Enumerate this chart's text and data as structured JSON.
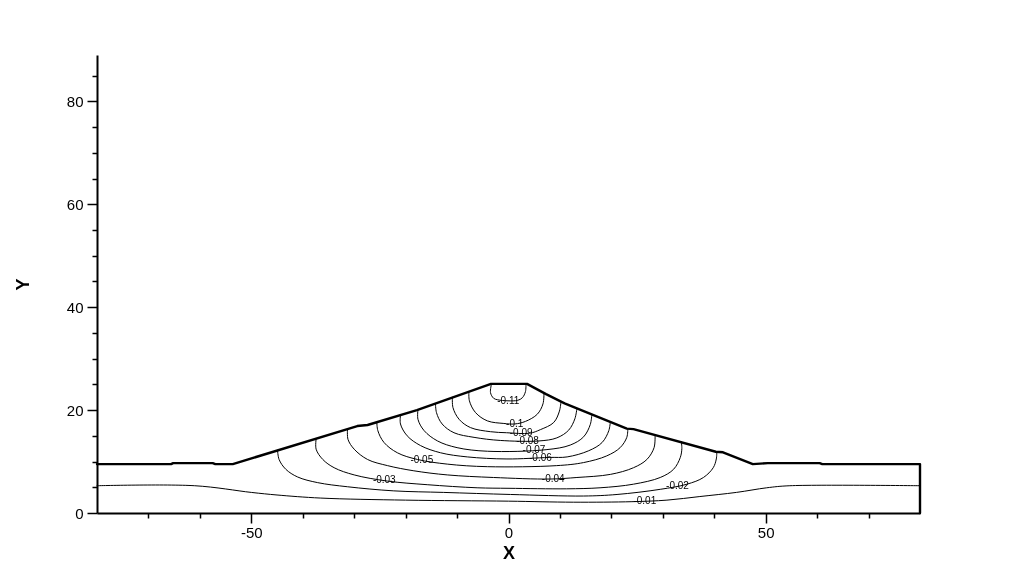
{
  "chart_data": {
    "type": "line",
    "xlabel": "X",
    "ylabel": "Y",
    "xlim": [
      -80,
      80
    ],
    "ylim": [
      0,
      89
    ],
    "xticks": [
      {
        "value": -70,
        "label": null
      },
      {
        "value": -60,
        "label": null
      },
      -50,
      {
        "value": -40,
        "label": null
      },
      {
        "value": -30,
        "label": null
      },
      {
        "value": -20,
        "label": null
      },
      {
        "value": -10,
        "label": null
      },
      0,
      {
        "value": 10,
        "label": null
      },
      {
        "value": 20,
        "label": null
      },
      {
        "value": 30,
        "label": null
      },
      {
        "value": 40,
        "label": null
      },
      50,
      {
        "value": 60,
        "label": null
      },
      {
        "value": 70,
        "label": null
      }
    ],
    "yticks": [
      0,
      {
        "value": 5,
        "label": null
      },
      {
        "value": 10,
        "label": null
      },
      {
        "value": 15,
        "label": null
      },
      20,
      {
        "value": 25,
        "label": null
      },
      {
        "value": 30,
        "label": null
      },
      {
        "value": 35,
        "label": null
      },
      40,
      {
        "value": 45,
        "label": null
      },
      {
        "value": 50,
        "label": null
      },
      {
        "value": 55,
        "label": null
      },
      60,
      {
        "value": 65,
        "label": null
      },
      {
        "value": 70,
        "label": null
      },
      {
        "value": 75,
        "label": null
      },
      80,
      {
        "value": 85,
        "label": null
      }
    ],
    "series": [
      {
        "color": "#000000",
        "x": [
          -80,
          -65.6,
          -65.2,
          -57.5,
          -57,
          -53.6,
          -29.4,
          -27.4,
          -17.8,
          -3.4,
          3.6,
          7.3,
          10.9,
          23,
          24.3,
          40.3,
          41.7,
          47.5,
          50.4,
          60.5,
          61,
          80,
          80
        ],
        "values": [
          9.5,
          9.5,
          9.7,
          9.7,
          9.5,
          9.5,
          16.9,
          17.1,
          20,
          25.1,
          25.1,
          23.1,
          21.3,
          16.4,
          16.3,
          11.9,
          11.8,
          9.5,
          9.7,
          9.7,
          9.5,
          9.5,
          0
        ]
      },
      {
        "name": "-0.11",
        "color": "#000000",
        "x": [
          -3.3,
          -3.5,
          -2.9,
          -2.1,
          -0.1,
          1.8,
          2.7,
          3.3,
          3.4
        ],
        "values": [
          25.1,
          23.4,
          22.3,
          22,
          21.8,
          21.9,
          22.4,
          23.6,
          25.1
        ]
      },
      {
        "name": "-0.1",
        "color": "#000000",
        "x": [
          -7.7,
          -7.6,
          -6.4,
          -4.1,
          -0.9,
          1.2,
          3.3,
          5.6,
          6.7,
          6.9
        ],
        "values": [
          23.6,
          21.8,
          19.5,
          17.9,
          17.4,
          17.3,
          17.8,
          19.2,
          21.2,
          23.3
        ]
      },
      {
        "name": "-0.09",
        "color": "#000000",
        "x": [
          -10.9,
          -10.8,
          -9.6,
          -7.4,
          -3.5,
          -0.4,
          4.1,
          6.2,
          8.8,
          9.9,
          10.2
        ],
        "values": [
          22.5,
          20.5,
          18.2,
          16.6,
          15.8,
          15.6,
          15.5,
          16.2,
          17.6,
          19.8,
          21.6
        ]
      },
      {
        "name": "-0.08",
        "color": "#000000",
        "x": [
          -14.2,
          -14,
          -12.9,
          -10.6,
          -6.7,
          -1.6,
          5.9,
          9.4,
          11.7,
          12.9,
          13.3
        ],
        "values": [
          21.3,
          19.5,
          17.3,
          15.6,
          14.7,
          14.1,
          14,
          14.6,
          16.1,
          18.3,
          20.3
        ]
      },
      {
        "name": "-0.07",
        "color": "#000000",
        "x": [
          -17.6,
          -17.6,
          -16.4,
          -13.8,
          -10,
          -4.1,
          7.3,
          12,
          14.6,
          15.9,
          16.2
        ],
        "values": [
          20.1,
          18.2,
          16,
          14,
          12.7,
          12,
          12.3,
          13.2,
          14.8,
          17.2,
          19.1
        ]
      },
      {
        "name": "-0.06",
        "color": "#000000",
        "x": [
          -21,
          -21,
          -19.7,
          -17.1,
          -13.2,
          -8,
          -0.3,
          7.9,
          11.4,
          15.6,
          18.2,
          19.5,
          19.8
        ],
        "values": [
          19,
          17.3,
          15,
          13.1,
          11.7,
          10.9,
          10.5,
          10.8,
          10.9,
          12.1,
          13.7,
          16,
          17.7
        ]
      },
      {
        "name": "-0.05",
        "color": "#000000",
        "x": [
          -25.6,
          -25.4,
          -24.2,
          -21.6,
          -17.7,
          -11.9,
          -4.1,
          9.3,
          14.6,
          19.1,
          21.7,
          23,
          23.2
        ],
        "values": [
          17.6,
          16,
          13.7,
          11.7,
          10.4,
          9.5,
          9,
          9.2,
          9.8,
          11.1,
          12.7,
          14.7,
          16.4
        ]
      },
      {
        "name": "-0.04",
        "color": "#000000",
        "x": [
          -31.3,
          -31.2,
          -30,
          -27.4,
          -23.5,
          -18.4,
          -11.9,
          -2.9,
          8.1,
          13.3,
          19.8,
          24.3,
          26.9,
          28.3,
          28.5
        ],
        "values": [
          16.3,
          14.3,
          12.4,
          10.4,
          9.2,
          8.2,
          7.4,
          6.9,
          6.6,
          6.9,
          7.5,
          8.8,
          10.4,
          12.7,
          15.1
        ]
      },
      {
        "name": "-0.03",
        "color": "#000000",
        "x": [
          -37.4,
          -37.4,
          -36.1,
          -33.9,
          -30,
          -23.5,
          -15.8,
          -6.1,
          0.1,
          11.3,
          17.8,
          24.3,
          29.5,
          32.1,
          33.4,
          33.7,
          33.6
        ],
        "values": [
          14.4,
          12.4,
          10.4,
          8.8,
          7.4,
          6.2,
          5.5,
          4.9,
          4.8,
          4.7,
          4.9,
          5.6,
          6.9,
          8.5,
          10.8,
          12.5,
          13.9
        ]
      },
      {
        "name": "-0.02",
        "color": "#000000",
        "x": [
          -44.9,
          -44.6,
          -43.3,
          -41,
          -37.1,
          -31.3,
          -22.3,
          -12.6,
          0.4,
          14.6,
          21.1,
          29.5,
          34.7,
          37.9,
          39.8,
          40.4,
          40.5
        ],
        "values": [
          12.2,
          10.4,
          8.5,
          7,
          5.9,
          5.1,
          4.3,
          4,
          3.6,
          3.3,
          3.6,
          4.6,
          5.6,
          6.9,
          8.8,
          10.5,
          11.9
        ]
      },
      {
        "name": "-0.01",
        "color": "#000000",
        "x": [
          -80,
          -61,
          -50,
          -45,
          -36.5,
          -20,
          0,
          12.6,
          24,
          30.8,
          37.2,
          44.3,
          50.2,
          54.7,
          80
        ],
        "values": [
          5.3,
          5.3,
          4,
          3.5,
          2.9,
          2.5,
          2.3,
          2.1,
          2.2,
          2.5,
          3.2,
          4,
          4.9,
          5.3,
          5.3
        ]
      }
    ]
  }
}
